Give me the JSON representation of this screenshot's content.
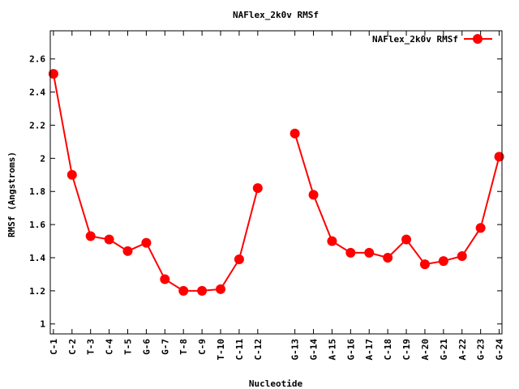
{
  "chart_data": {
    "type": "line",
    "title": "NAFlex_2k0v RMSf",
    "xlabel": "Nucleotide",
    "ylabel": "RMSf (Angstroms)",
    "categories": [
      "C-1",
      "C-2",
      "T-3",
      "C-4",
      "T-5",
      "G-6",
      "G-7",
      "T-8",
      "C-9",
      "T-10",
      "C-11",
      "C-12",
      "G-13",
      "G-14",
      "A-15",
      "G-16",
      "A-17",
      "C-18",
      "C-19",
      "A-20",
      "G-21",
      "A-22",
      "G-23",
      "G-24"
    ],
    "x_positions": [
      0,
      1,
      2,
      3,
      4,
      5,
      6,
      7,
      8,
      9,
      10,
      11,
      13,
      14,
      15,
      16,
      17,
      18,
      19,
      20,
      21,
      22,
      23,
      24
    ],
    "segments": [
      [
        0,
        11
      ],
      [
        12,
        23
      ]
    ],
    "series": [
      {
        "name": "NAFlex_2k0v RMSf",
        "color": "#ff0000",
        "values": [
          2.51,
          1.9,
          1.53,
          1.51,
          1.44,
          1.49,
          1.27,
          1.2,
          1.2,
          1.21,
          1.39,
          1.82,
          2.15,
          1.78,
          1.5,
          1.43,
          1.43,
          1.4,
          1.51,
          1.36,
          1.38,
          1.41,
          1.58,
          2.01
        ]
      }
    ],
    "yticks": [
      "1",
      "1.2",
      "1.4",
      "1.6",
      "1.8",
      "2",
      "2.2",
      "2.4",
      "2.6"
    ],
    "ytick_values": [
      1,
      1.2,
      1.4,
      1.6,
      1.8,
      2,
      2.2,
      2.4,
      2.6
    ],
    "ylim": [
      0.94,
      2.77
    ],
    "xlim": [
      -0.17,
      24.15
    ],
    "grid": false,
    "legend": "top-right"
  }
}
